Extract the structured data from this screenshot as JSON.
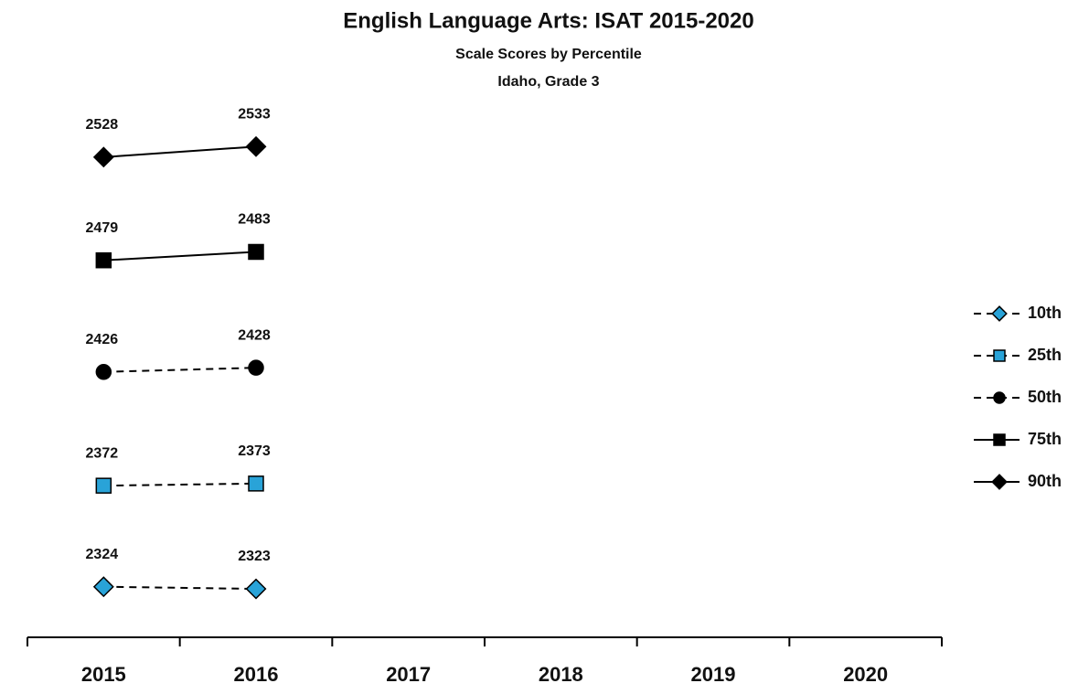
{
  "chart_data": {
    "type": "line",
    "title": "English Language Arts: ISAT 2015-2020",
    "subtitle": [
      "Scale Scores by Percentile",
      "Idaho, Grade 3"
    ],
    "categories": [
      "2015",
      "2016",
      "2017",
      "2018",
      "2019",
      "2020"
    ],
    "ylim": [
      2300,
      2600
    ],
    "legend": "right",
    "series": [
      {
        "name": "10th",
        "color": "#29a3d8",
        "marker": "diamond",
        "dashed": true,
        "values": [
          2324,
          2323,
          null,
          null,
          null,
          null
        ]
      },
      {
        "name": "25th",
        "color": "#29a3d8",
        "marker": "square",
        "dashed": true,
        "values": [
          2372,
          2373,
          null,
          null,
          null,
          null
        ]
      },
      {
        "name": "50th",
        "color": "#000000",
        "marker": "circle",
        "dashed": true,
        "values": [
          2426,
          2428,
          null,
          null,
          null,
          null
        ]
      },
      {
        "name": "75th",
        "color": "#000000",
        "marker": "square",
        "dashed": false,
        "values": [
          2479,
          2483,
          null,
          null,
          null,
          null
        ]
      },
      {
        "name": "90th",
        "color": "#000000",
        "marker": "diamond",
        "dashed": false,
        "values": [
          2528,
          2533,
          null,
          null,
          null,
          null
        ]
      }
    ]
  }
}
